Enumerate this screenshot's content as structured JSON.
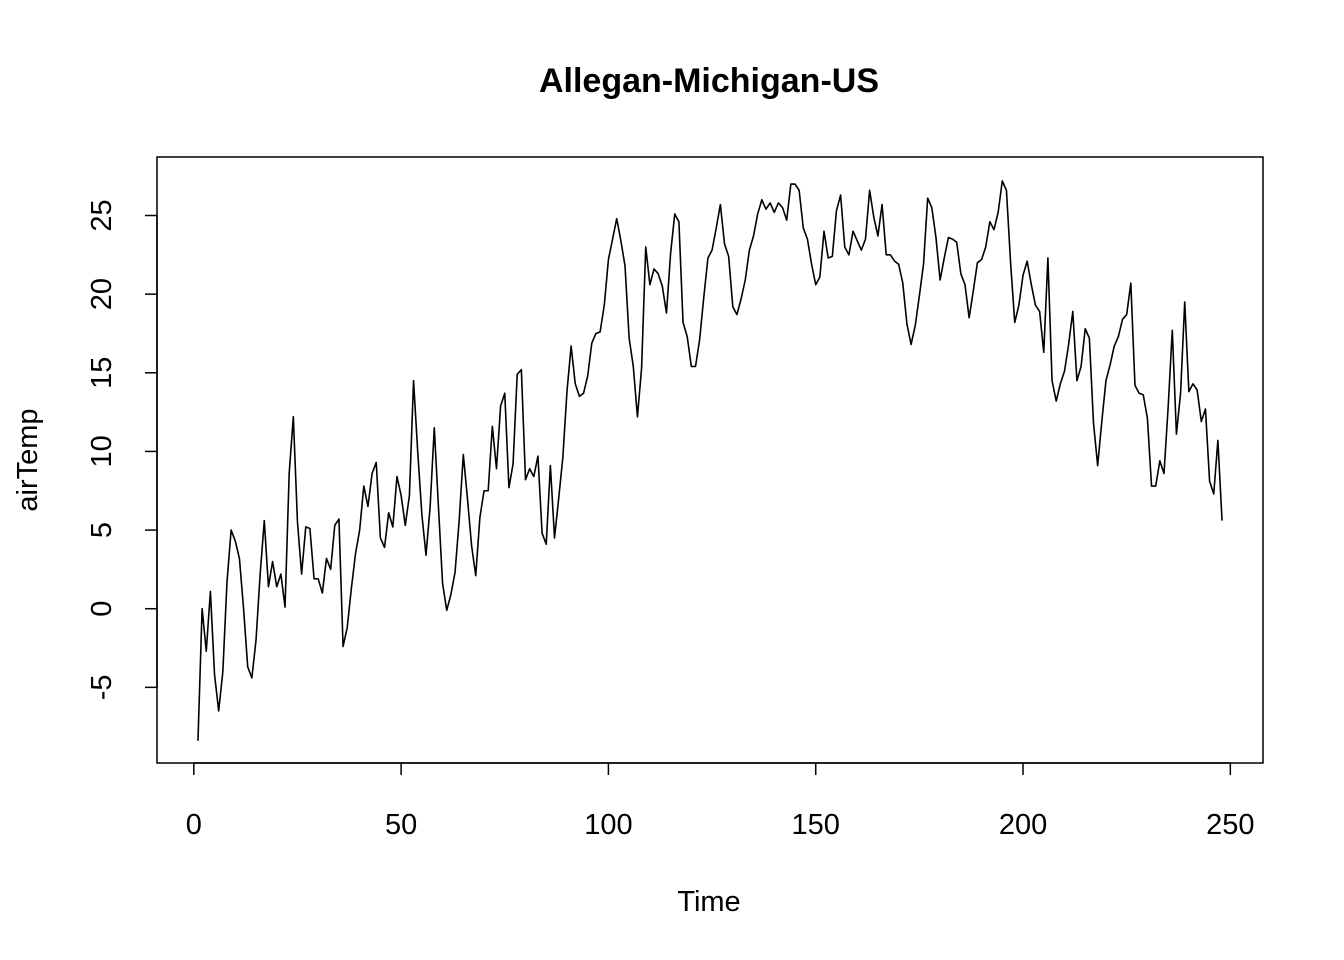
{
  "chart_data": {
    "type": "line",
    "title": "Allegan-Michigan-US",
    "xlabel": "Time",
    "ylabel": "airTemp",
    "xlim": [
      -8.88,
      257.88
    ],
    "ylim": [
      -9.81,
      28.72
    ],
    "xticks": [
      0,
      50,
      100,
      150,
      200,
      250
    ],
    "yticks": [
      -5,
      0,
      5,
      10,
      15,
      20,
      25
    ],
    "xtick_labels": [
      "0",
      "50",
      "100",
      "150",
      "200",
      "250"
    ],
    "ytick_labels": [
      "-5",
      "0",
      "5",
      "10",
      "15",
      "20",
      "25"
    ],
    "grid": false,
    "series": [
      {
        "color": "#000000",
        "x": [
          1,
          2,
          3,
          4,
          5,
          6,
          7,
          8,
          9,
          10,
          11,
          12,
          13,
          14,
          15,
          16,
          17,
          18,
          19,
          20,
          21,
          22,
          23,
          24,
          25,
          26,
          27,
          28,
          29,
          30,
          31,
          32,
          33,
          34,
          35,
          36,
          37,
          38,
          39,
          40,
          41,
          42,
          43,
          44,
          45,
          46,
          47,
          48,
          49,
          50,
          51,
          52,
          53,
          54,
          55,
          56,
          57,
          58,
          59,
          60,
          61,
          62,
          63,
          64,
          65,
          66,
          67,
          68,
          69,
          70,
          71,
          72,
          73,
          74,
          75,
          76,
          77,
          78,
          79,
          80,
          81,
          82,
          83,
          84,
          85,
          86,
          87,
          88,
          89,
          90,
          91,
          92,
          93,
          94,
          95,
          96,
          97,
          98,
          99,
          100,
          101,
          102,
          103,
          104,
          105,
          106,
          107,
          108,
          109,
          110,
          111,
          112,
          113,
          114,
          115,
          116,
          117,
          118,
          119,
          120,
          121,
          122,
          123,
          124,
          125,
          126,
          127,
          128,
          129,
          130,
          131,
          132,
          133,
          134,
          135,
          136,
          137,
          138,
          139,
          140,
          141,
          142,
          143,
          144,
          145,
          146,
          147,
          148,
          149,
          150,
          151,
          152,
          153,
          154,
          155,
          156,
          157,
          158,
          159,
          160,
          161,
          162,
          163,
          164,
          165,
          166,
          167,
          168,
          169,
          170,
          171,
          172,
          173,
          174,
          175,
          176,
          177,
          178,
          179,
          180,
          181,
          182,
          183,
          184,
          185,
          186,
          187,
          188,
          189,
          190,
          191,
          192,
          193,
          194,
          195,
          196,
          197,
          198,
          199,
          200,
          201,
          202,
          203,
          204,
          205,
          206,
          207,
          208,
          209,
          210,
          211,
          212,
          213,
          214,
          215,
          216,
          217,
          218,
          219,
          220,
          221,
          222,
          223,
          224,
          225,
          226,
          227,
          228,
          229,
          230,
          231,
          232,
          233,
          234,
          235,
          236,
          237,
          238,
          239,
          240,
          241,
          242,
          243,
          244,
          245,
          246,
          247,
          248
        ],
        "y": [
          -8.4,
          0.0,
          -2.7,
          1.1,
          -4.2,
          -6.5,
          -4.0,
          1.7,
          5.0,
          4.3,
          3.2,
          0.0,
          -3.7,
          -4.4,
          -2.0,
          2.2,
          5.6,
          1.4,
          3.0,
          1.4,
          2.2,
          0.1,
          8.6,
          12.2,
          5.5,
          2.2,
          5.2,
          5.1,
          1.9,
          1.9,
          1.0,
          3.2,
          2.5,
          5.3,
          5.7,
          -2.4,
          -1.2,
          1.3,
          3.5,
          5.0,
          7.8,
          6.5,
          8.6,
          9.3,
          4.5,
          3.9,
          6.1,
          5.2,
          8.4,
          7.2,
          5.3,
          7.2,
          14.5,
          10.0,
          6.0,
          3.4,
          6.5,
          11.5,
          6.5,
          1.6,
          -0.1,
          0.9,
          2.3,
          5.6,
          9.8,
          7.0,
          4.0,
          2.1,
          5.8,
          7.5,
          7.5,
          11.6,
          8.9,
          12.9,
          13.7,
          7.7,
          9.2,
          14.9,
          15.2,
          8.2,
          8.9,
          8.4,
          9.7,
          4.8,
          4.1,
          9.1,
          4.5,
          7.0,
          9.6,
          13.8,
          16.7,
          14.3,
          13.5,
          13.7,
          14.8,
          16.9,
          17.5,
          17.6,
          19.3,
          22.2,
          23.5,
          24.8,
          23.4,
          21.8,
          17.2,
          15.4,
          12.2,
          15.3,
          23.0,
          20.6,
          21.6,
          21.3,
          20.5,
          18.8,
          22.6,
          25.1,
          24.6,
          18.2,
          17.3,
          15.4,
          15.4,
          17.1,
          19.8,
          22.3,
          22.8,
          24.2,
          25.7,
          23.2,
          22.4,
          19.2,
          18.7,
          19.7,
          20.9,
          22.8,
          23.7,
          25.1,
          26.0,
          25.4,
          25.8,
          25.2,
          25.8,
          25.5,
          24.7,
          27.0,
          27.0,
          26.6,
          24.2,
          23.5,
          21.9,
          20.6,
          21.1,
          24.0,
          22.3,
          22.4,
          25.3,
          26.3,
          23.0,
          22.5,
          24.0,
          23.4,
          22.8,
          23.5,
          26.6,
          24.9,
          23.7,
          25.7,
          22.5,
          22.5,
          22.1,
          21.9,
          20.7,
          18.1,
          16.8,
          18.0,
          19.9,
          21.9,
          26.1,
          25.5,
          23.6,
          20.9,
          22.3,
          23.6,
          23.5,
          23.3,
          21.3,
          20.6,
          18.5,
          20.2,
          22.0,
          22.2,
          23.0,
          24.6,
          24.1,
          25.2,
          27.2,
          26.6,
          22.0,
          18.2,
          19.3,
          21.2,
          22.1,
          20.6,
          19.3,
          18.9,
          16.3,
          22.3,
          14.5,
          13.2,
          14.3,
          15.1,
          16.8,
          18.9,
          14.5,
          15.4,
          17.8,
          17.2,
          11.8,
          9.1,
          11.9,
          14.5,
          15.5,
          16.7,
          17.3,
          18.4,
          18.7,
          20.7,
          14.2,
          13.7,
          13.6,
          12.1,
          7.8,
          7.8,
          9.4,
          8.6,
          12.8,
          17.7,
          11.1,
          13.7,
          19.5,
          13.8,
          14.3,
          13.9,
          11.9,
          12.7,
          8.1,
          7.3,
          10.7,
          5.6
        ]
      }
    ]
  }
}
